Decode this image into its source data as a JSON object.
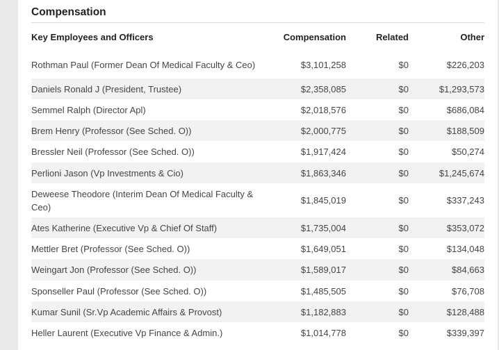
{
  "section_title": "Compensation",
  "headers": {
    "name": "Key Employees and Officers",
    "compensation": "Compensation",
    "related": "Related",
    "other": "Other"
  },
  "rows": [
    {
      "name": "Rothman Paul (Former Dean Of Medical Faculty & Ceo)",
      "compensation": "$3,101,258",
      "related": "$0",
      "other": "$226,203"
    },
    {
      "name": "Daniels Ronald J (President, Trustee)",
      "compensation": "$2,358,085",
      "related": "$0",
      "other": "$1,293,573"
    },
    {
      "name": "Semmel Ralph (Director Apl)",
      "compensation": "$2,018,576",
      "related": "$0",
      "other": "$686,084"
    },
    {
      "name": "Brem Henry (Professor (See Sched. O))",
      "compensation": "$2,000,775",
      "related": "$0",
      "other": "$188,509"
    },
    {
      "name": "Bressler Neil (Professor (See Sched. O))",
      "compensation": "$1,917,424",
      "related": "$0",
      "other": "$50,274"
    },
    {
      "name": "Perlioni Jason (Vp Investments & Cio)",
      "compensation": "$1,863,346",
      "related": "$0",
      "other": "$1,245,674"
    },
    {
      "name": "Deweese Theodore (Interim Dean Of Medical Faculty & Ceo)",
      "compensation": "$1,845,019",
      "related": "$0",
      "other": "$337,243"
    },
    {
      "name": "Ates Katherine (Executive Vp & Chief Of Staff)",
      "compensation": "$1,735,004",
      "related": "$0",
      "other": "$353,072"
    },
    {
      "name": "Mettler Bret (Professor (See Sched. O))",
      "compensation": "$1,649,051",
      "related": "$0",
      "other": "$134,048"
    },
    {
      "name": "Weingart Jon (Professor (See Sched. O))",
      "compensation": "$1,589,017",
      "related": "$0",
      "other": "$84,663"
    },
    {
      "name": "Sponseller Paul (Professor (See Sched. O))",
      "compensation": "$1,485,505",
      "related": "$0",
      "other": "$76,708"
    },
    {
      "name": "Kumar Sunil (Sr.Vp Academic Affairs & Provost)",
      "compensation": "$1,182,883",
      "related": "$0",
      "other": "$128,488"
    },
    {
      "name": "Heller Laurent (Executive Vp Finance & Admin.)",
      "compensation": "$1,014,778",
      "related": "$0",
      "other": "$339,397"
    }
  ]
}
